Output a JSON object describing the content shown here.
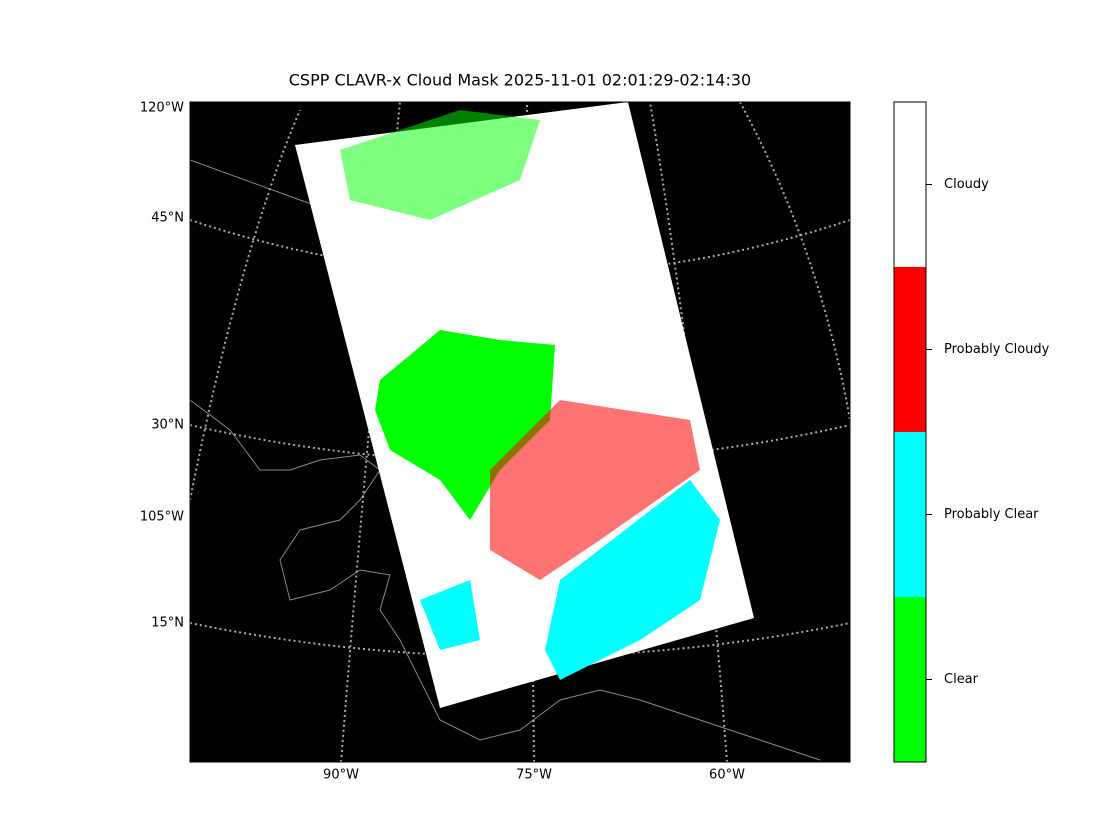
{
  "map": {
    "title": "CSPP CLAVR-x Cloud Mask 2025-11-01 02:01:29-02:14:30",
    "left_labels": [
      "120°W",
      "45°N",
      "30°N",
      "105°W",
      "15°N"
    ],
    "bottom_labels": [
      "90°W",
      "75°W",
      "60°W"
    ],
    "legend": [
      {
        "label": "Clear",
        "color": "#00ff00"
      },
      {
        "label": "Probably Clear",
        "color": "#00ffff"
      },
      {
        "label": "Probably Cloudy",
        "color": "#ff0000"
      },
      {
        "label": "Cloudy",
        "color": "#ffffff"
      }
    ]
  }
}
